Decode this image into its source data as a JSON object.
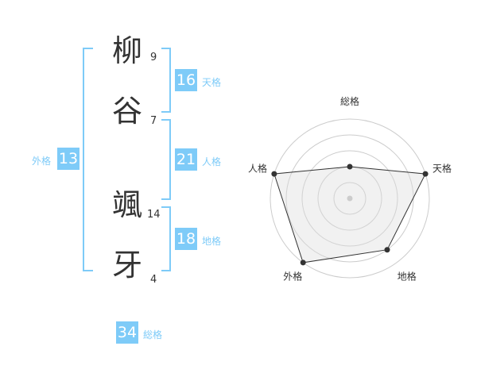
{
  "name": {
    "chars": [
      {
        "char": "柳",
        "strokes": "9"
      },
      {
        "char": "谷",
        "strokes": "7"
      },
      {
        "char": "颯",
        "strokes": "14"
      },
      {
        "char": "牙",
        "strokes": "4"
      }
    ]
  },
  "kaku": {
    "tenkaku": {
      "label": "天格",
      "value": "16"
    },
    "jinkaku": {
      "label": "人格",
      "value": "21"
    },
    "chikaku": {
      "label": "地格",
      "value": "18"
    },
    "gaikaku": {
      "label": "外格",
      "value": "13"
    },
    "soukaku": {
      "label": "総格",
      "value": "34"
    }
  },
  "colors": {
    "accent": "#7ecbf8"
  },
  "chart_data": {
    "type": "radar",
    "axes": [
      "総格",
      "天格",
      "地格",
      "外格",
      "人格"
    ],
    "values": [
      2,
      5,
      4,
      5,
      5
    ],
    "range": [
      0,
      5
    ],
    "rings": 5
  }
}
